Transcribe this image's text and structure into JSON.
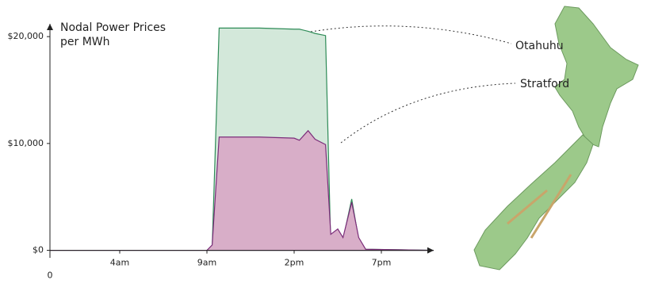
{
  "chart_data": {
    "type": "area",
    "title": "Nodal Power Prices per MWh",
    "x": [
      0,
      9,
      9.3,
      9.7,
      12,
      14,
      14.3,
      14.8,
      15.2,
      15.8,
      16.1,
      16.5,
      16.8,
      17.3,
      17.7,
      18.1,
      22
    ],
    "series": [
      {
        "name": "Otahuhu",
        "color": "#2e8b57",
        "fill": "#d3e8da",
        "values": [
          0,
          0,
          300,
          20800,
          20800,
          20700,
          20700,
          20500,
          20300,
          20100,
          200,
          1800,
          1000,
          4800,
          1000,
          100,
          0
        ]
      },
      {
        "name": "Stratford",
        "color": "#7b2d7a",
        "fill": "#d8aec8",
        "values": [
          0,
          0,
          500,
          10600,
          10600,
          10500,
          10300,
          11200,
          10400,
          9900,
          1500,
          2000,
          1200,
          4500,
          1200,
          100,
          0
        ]
      }
    ],
    "xlim": [
      0,
      22
    ],
    "xticks": [
      0,
      {
        "value": 4,
        "label": "4am"
      },
      {
        "value": 9,
        "label": "9am"
      },
      {
        "value": 14,
        "label": "2pm"
      },
      {
        "value": 19,
        "label": "7pm"
      }
    ],
    "ylim": [
      -700,
      21200
    ],
    "yticks": [
      {
        "value": 0,
        "label": "$0"
      },
      {
        "value": 10000,
        "label": "$10,000"
      },
      {
        "value": 20000,
        "label": "$20,000"
      }
    ]
  }
}
